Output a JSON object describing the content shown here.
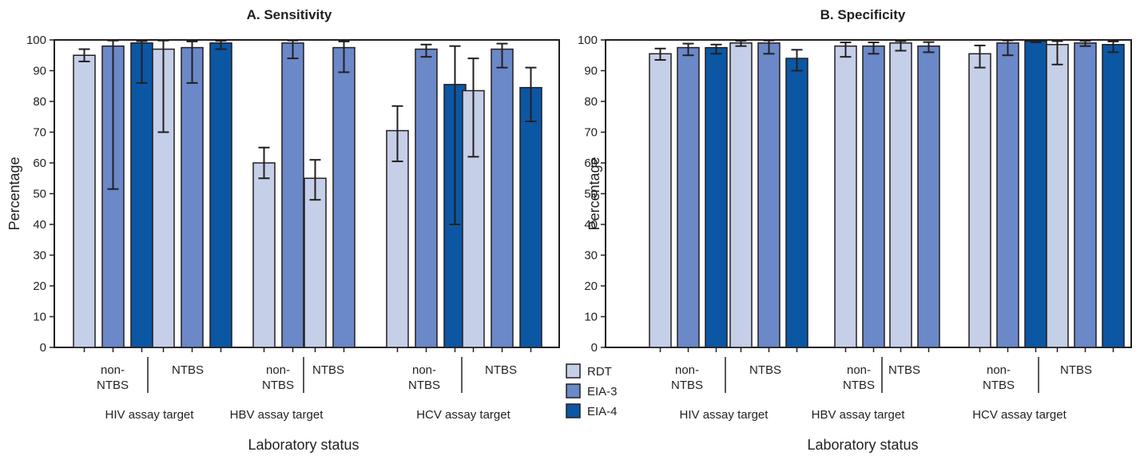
{
  "colors": {
    "RDT": "#c5cfe8",
    "EIA-3": "#6b88c8",
    "EIA-4": "#0b57a4",
    "axis": "#231f20",
    "bar_outline": "#231f20"
  },
  "legend": {
    "placement": "bottom-center",
    "items": [
      {
        "name": "RDT",
        "color": "#c5cfe8"
      },
      {
        "name": "EIA-3",
        "color": "#6b88c8"
      },
      {
        "name": "EIA-4",
        "color": "#0b57a4"
      }
    ]
  },
  "chart_data": [
    {
      "type": "bar",
      "title": "A. Sensitivity",
      "xlabel": "Laboratory status",
      "ylabel": "Percentage",
      "ylim": [
        0,
        100
      ],
      "yticks": [
        0,
        10,
        20,
        30,
        40,
        50,
        60,
        70,
        80,
        90,
        100
      ],
      "grid": false,
      "series_names": [
        "RDT",
        "EIA-3",
        "EIA-4"
      ],
      "groups": [
        {
          "target": "HIV assay target",
          "status": [
            "non-",
            "NTBS"
          ],
          "bars": [
            {
              "series": "RDT",
              "value": 95,
              "ci": [
                93,
                97
              ]
            },
            {
              "series": "EIA-3",
              "value": 98,
              "ci": [
                51.5,
                99.8
              ]
            },
            {
              "series": "EIA-4",
              "value": 99,
              "ci": [
                86,
                99.6
              ]
            }
          ]
        },
        {
          "target": "HIV assay target",
          "status": [
            "NTBS"
          ],
          "bars": [
            {
              "series": "RDT",
              "value": 97,
              "ci": [
                70,
                99.8
              ]
            },
            {
              "series": "EIA-3",
              "value": 97.5,
              "ci": [
                86,
                99.5
              ]
            },
            {
              "series": "EIA-4",
              "value": 99,
              "ci": [
                97,
                99.7
              ]
            }
          ]
        },
        {
          "target": "HBV assay target",
          "status": [
            "non-",
            "NTBS"
          ],
          "bars": [
            {
              "series": "RDT",
              "value": 60,
              "ci": [
                55,
                65
              ]
            },
            {
              "series": "EIA-3",
              "value": 99,
              "ci": [
                94,
                99.8
              ]
            }
          ]
        },
        {
          "target": "HBV assay target",
          "status": [
            "NTBS"
          ],
          "bars": [
            {
              "series": "RDT",
              "value": 55,
              "ci": [
                48,
                61
              ]
            },
            {
              "series": "EIA-3",
              "value": 97.5,
              "ci": [
                89.5,
                99.5
              ]
            }
          ]
        },
        {
          "target": "HCV assay target",
          "status": [
            "non-",
            "NTBS"
          ],
          "bars": [
            {
              "series": "RDT",
              "value": 70.5,
              "ci": [
                60.5,
                78.5
              ]
            },
            {
              "series": "EIA-3",
              "value": 97,
              "ci": [
                94.5,
                98.5
              ]
            },
            {
              "series": "EIA-4",
              "value": 85.5,
              "ci": [
                40,
                98
              ]
            }
          ]
        },
        {
          "target": "HCV assay target",
          "status": [
            "NTBS"
          ],
          "bars": [
            {
              "series": "RDT",
              "value": 83.5,
              "ci": [
                62,
                94
              ]
            },
            {
              "series": "EIA-3",
              "value": 97,
              "ci": [
                91,
                98.8
              ]
            },
            {
              "series": "EIA-4",
              "value": 84.5,
              "ci": [
                73.5,
                91
              ]
            }
          ]
        }
      ]
    },
    {
      "type": "bar",
      "title": "B. Specificity",
      "xlabel": "Laboratory status",
      "ylabel": "Percentage",
      "ylim": [
        0,
        100
      ],
      "yticks": [
        0,
        10,
        20,
        30,
        40,
        50,
        60,
        70,
        80,
        90,
        100
      ],
      "grid": false,
      "series_names": [
        "RDT",
        "EIA-3",
        "EIA-4"
      ],
      "groups": [
        {
          "target": "HIV assay target",
          "status": [
            "non-",
            "NTBS"
          ],
          "bars": [
            {
              "series": "RDT",
              "value": 95.5,
              "ci": [
                93.5,
                97.2
              ]
            },
            {
              "series": "EIA-3",
              "value": 97.5,
              "ci": [
                95,
                98.8
              ]
            },
            {
              "series": "EIA-4",
              "value": 97.5,
              "ci": [
                95.5,
                98.5
              ]
            }
          ]
        },
        {
          "target": "HIV assay target",
          "status": [
            "NTBS"
          ],
          "bars": [
            {
              "series": "RDT",
              "value": 99,
              "ci": [
                98,
                99.7
              ]
            },
            {
              "series": "EIA-3",
              "value": 99,
              "ci": [
                95.5,
                99.8
              ]
            },
            {
              "series": "EIA-4",
              "value": 94,
              "ci": [
                90,
                96.8
              ]
            }
          ]
        },
        {
          "target": "HBV assay target",
          "status": [
            "non-",
            "NTBS"
          ],
          "bars": [
            {
              "series": "RDT",
              "value": 98,
              "ci": [
                94.5,
                99.2
              ]
            },
            {
              "series": "EIA-3",
              "value": 98,
              "ci": [
                95.5,
                99.2
              ]
            }
          ]
        },
        {
          "target": "HBV assay target",
          "status": [
            "NTBS"
          ],
          "bars": [
            {
              "series": "RDT",
              "value": 99,
              "ci": [
                96.5,
                99.6
              ]
            },
            {
              "series": "EIA-3",
              "value": 98,
              "ci": [
                96,
                99.3
              ]
            }
          ]
        },
        {
          "target": "HCV assay target",
          "status": [
            "non-",
            "NTBS"
          ],
          "bars": [
            {
              "series": "RDT",
              "value": 95.5,
              "ci": [
                91,
                98.2
              ]
            },
            {
              "series": "EIA-3",
              "value": 99,
              "ci": [
                95,
                99.8
              ]
            },
            {
              "series": "EIA-4",
              "value": 99.6,
              "ci": [
                99.2,
                99.9
              ]
            }
          ]
        },
        {
          "target": "HCV assay target",
          "status": [
            "NTBS"
          ],
          "bars": [
            {
              "series": "RDT",
              "value": 98.5,
              "ci": [
                92,
                99.6
              ]
            },
            {
              "series": "EIA-3",
              "value": 99,
              "ci": [
                98,
                99.7
              ]
            },
            {
              "series": "EIA-4",
              "value": 98.5,
              "ci": [
                96,
                99.5
              ]
            }
          ]
        }
      ]
    }
  ]
}
